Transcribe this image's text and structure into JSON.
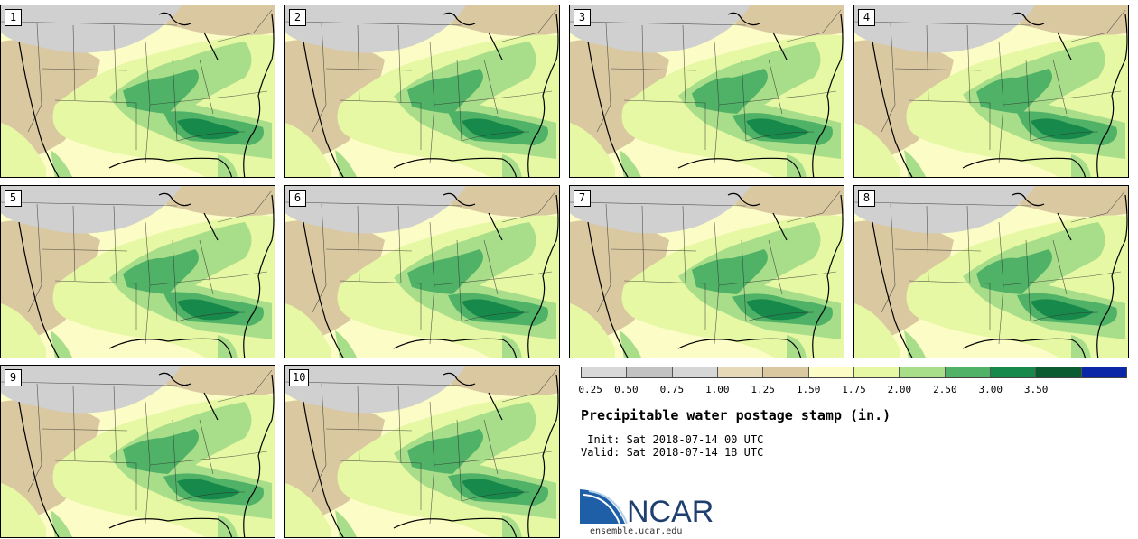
{
  "stamps": [
    "1",
    "2",
    "3",
    "4",
    "5",
    "6",
    "7",
    "8",
    "9",
    "10"
  ],
  "colorbar": {
    "colors": [
      "#d8d8d8",
      "#c2c2c2",
      "#d6d6d6",
      "#e5d9b8",
      "#d9c8a0",
      "#fcfcc6",
      "#e6f8a4",
      "#a8dd8a",
      "#4fb266",
      "#17894a",
      "#0c5c31",
      "#0a27a8"
    ],
    "tick_labels": [
      "0.25",
      "0.50",
      "0.75",
      "1.00",
      "1.25",
      "1.50",
      "1.75",
      "2.00",
      "2.50",
      "3.00",
      "3.50"
    ]
  },
  "title": "Precipitable water postage stamp (in.)",
  "init": " Init: Sat 2018-07-14 00 UTC",
  "valid": "Valid: Sat 2018-07-14 18 UTC",
  "logo": {
    "text": "NCAR",
    "url": "ensemble.ucar.edu"
  },
  "map_colors": {
    "dry_gray": "#d0d0d0",
    "tan": "#d9c8a0",
    "pale_yellow": "#fcfcc6",
    "light_green": "#e6f8a4",
    "mid_green": "#a8dd8a",
    "green": "#4fb266",
    "dark_green": "#17894a"
  }
}
